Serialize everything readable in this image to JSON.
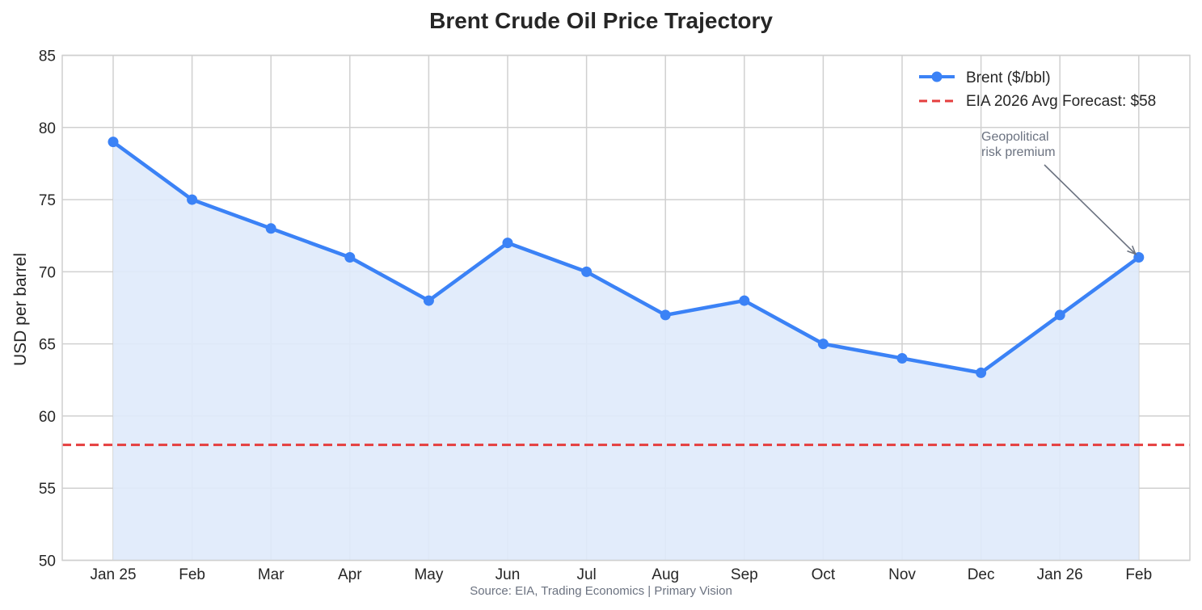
{
  "chart_data": {
    "type": "area",
    "title": "Brent Crude Oil Price Trajectory",
    "xlabel": "",
    "ylabel": "USD per barrel",
    "ylim": [
      50,
      85
    ],
    "yticks": [
      50,
      55,
      60,
      65,
      70,
      75,
      80,
      85
    ],
    "categories": [
      "Jan 25",
      "Feb",
      "Mar",
      "Apr",
      "May",
      "Jun",
      "Jul",
      "Aug",
      "Sep",
      "Oct",
      "Nov",
      "Dec",
      "Jan 26",
      "Feb"
    ],
    "series": [
      {
        "name": "Brent ($/bbl)",
        "values": [
          79,
          75,
          73,
          71,
          68,
          72,
          70,
          67,
          68,
          65,
          64,
          63,
          67,
          71
        ],
        "color": "#3b82f6",
        "fill_color": "#dfeafb"
      }
    ],
    "reference_line": {
      "name": "EIA 2026 Avg Forecast: $58",
      "value": 58,
      "color": "#e53e3e",
      "style": "dashed"
    },
    "annotation": {
      "text_lines": [
        "Geopolitical",
        "risk premium"
      ],
      "category_index": 13,
      "value": 71,
      "color": "#6b7280"
    },
    "grid": true,
    "legend_position": "top-right",
    "source": "Source: EIA, Trading Economics | Primary Vision"
  }
}
